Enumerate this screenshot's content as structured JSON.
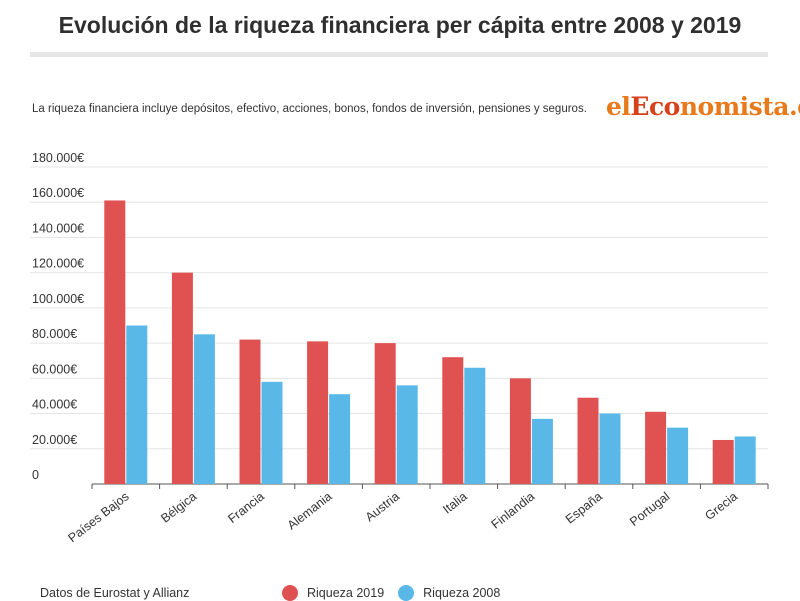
{
  "header": {
    "title": "Evolución de la riqueza financiera per cápita entre 2008 y 2019",
    "subtitle": "La riqueza financiera incluye depósitos, efectivo, acciones, bonos, fondos de inversión, pensiones y seguros."
  },
  "logo": {
    "prefix": "el",
    "accent": "Eco",
    "rest": "nomista.es"
  },
  "footer": {
    "source": "Datos de Eurostat y Allianz"
  },
  "colors": {
    "series_2019": "#e05252",
    "series_2008": "#5ab8e8",
    "grid": "#e5e5e5",
    "axis": "#555555"
  },
  "chart_data": {
    "type": "bar",
    "categories": [
      "Países Bajos",
      "Bélgica",
      "Francia",
      "Alemania",
      "Austria",
      "Italia",
      "Finlandia",
      "España",
      "Portugal",
      "Grecia"
    ],
    "series": [
      {
        "name": "Riqueza 2019",
        "values": [
          161000,
          120000,
          82000,
          81000,
          80000,
          72000,
          60000,
          49000,
          41000,
          25000
        ]
      },
      {
        "name": "Riqueza 2008",
        "values": [
          90000,
          85000,
          58000,
          51000,
          56000,
          66000,
          37000,
          40000,
          32000,
          27000
        ]
      }
    ],
    "yticks": [
      "0",
      "20.000€",
      "40.000€",
      "60.000€",
      "80.000€",
      "100.000€",
      "120.000€",
      "140.000€",
      "160.000€",
      "180.000€"
    ],
    "ylim": [
      0,
      180000
    ],
    "grid": true,
    "legend": "bottom"
  }
}
